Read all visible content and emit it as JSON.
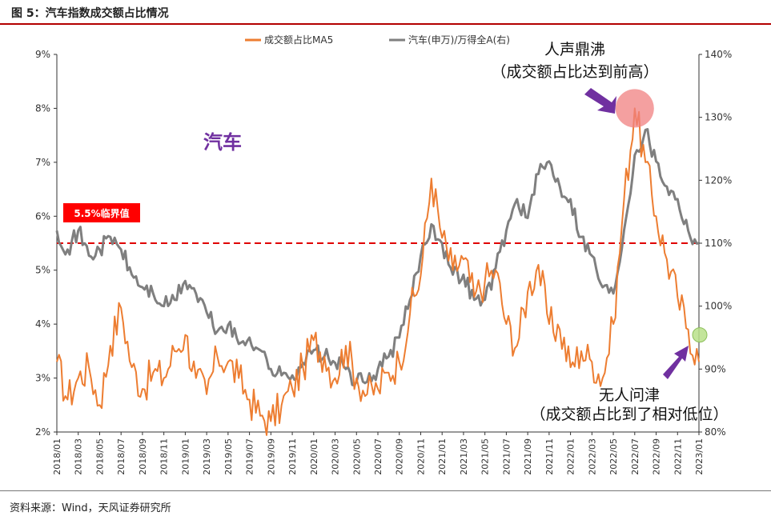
{
  "header": {
    "title": "图 5：汽车指数成交额占比情况"
  },
  "footer": {
    "source": "资料来源：Wind，天风证券研究所"
  },
  "chart_data": {
    "type": "line",
    "sector_label": "汽车",
    "legend": {
      "placement": "top-center",
      "items": [
        {
          "name": "成交额占比MA5",
          "color": "#ed7d31"
        },
        {
          "name": "汽车(申万)/万得全A(右)",
          "color": "#7f7f7f"
        }
      ]
    },
    "colors": {
      "share": "#ed7d31",
      "ratio": "#7f7f7f",
      "threshold": "#e00000",
      "label_red": "#ff0000",
      "annotation_purple": "#7030a0"
    },
    "y_left": {
      "min": 2,
      "max": 9,
      "ticks": [
        "2%",
        "3%",
        "4%",
        "5%",
        "6%",
        "7%",
        "8%",
        "9%"
      ]
    },
    "y_right": {
      "min": 80,
      "max": 140,
      "ticks": [
        "80%",
        "90%",
        "100%",
        "110%",
        "120%",
        "130%",
        "140%"
      ]
    },
    "x_ticks": [
      "2018/01",
      "2018/03",
      "2018/05",
      "2018/07",
      "2018/09",
      "2018/11",
      "2019/01",
      "2019/03",
      "2019/05",
      "2019/07",
      "2019/09",
      "2019/11",
      "2020/01",
      "2020/03",
      "2020/05",
      "2020/07",
      "2020/09",
      "2020/11",
      "2021/01",
      "2021/03",
      "2021/05",
      "2021/07",
      "2021/09",
      "2021/11",
      "2022/01",
      "2022/03",
      "2022/05",
      "2022/07",
      "2022/09",
      "2022/11",
      "2023/01"
    ],
    "threshold": {
      "value": 5.5,
      "label": "5.5%临界值"
    },
    "annotations": {
      "high": {
        "line1": "人声鼎沸",
        "line2": "（成交额占比达到前高）",
        "month": "2022/07",
        "value": 8.0
      },
      "low": {
        "line1": "无人问津",
        "line2": "（成交额占比到了相对低位）",
        "month": "2022/12",
        "value": 3.8
      }
    },
    "series": [
      {
        "name": "成交额占比MA5",
        "axis": "left",
        "x": [
          "2018/01",
          "2018/02",
          "2018/03",
          "2018/04",
          "2018/05",
          "2018/06",
          "2018/07",
          "2018/08",
          "2018/09",
          "2018/10",
          "2018/11",
          "2018/12",
          "2019/01",
          "2019/02",
          "2019/03",
          "2019/04",
          "2019/05",
          "2019/06",
          "2019/07",
          "2019/08",
          "2019/09",
          "2019/10",
          "2019/11",
          "2019/12",
          "2020/01",
          "2020/02",
          "2020/03",
          "2020/04",
          "2020/05",
          "2020/06",
          "2020/07",
          "2020/08",
          "2020/09",
          "2020/10",
          "2020/11",
          "2020/12",
          "2021/01",
          "2021/02",
          "2021/03",
          "2021/04",
          "2021/05",
          "2021/06",
          "2021/07",
          "2021/08",
          "2021/09",
          "2021/10",
          "2021/11",
          "2021/12",
          "2022/01",
          "2022/02",
          "2022/03",
          "2022/04",
          "2022/05",
          "2022/06",
          "2022/07",
          "2022/08",
          "2022/09",
          "2022/10",
          "2022/11",
          "2022/12",
          "2023/01"
        ],
        "values": [
          3.3,
          2.6,
          3.0,
          3.2,
          2.5,
          3.6,
          4.3,
          3.2,
          2.8,
          3.1,
          3.0,
          3.5,
          3.8,
          3.0,
          2.7,
          3.4,
          3.3,
          3.0,
          2.6,
          2.3,
          2.2,
          2.5,
          2.8,
          3.2,
          3.7,
          3.4,
          3.0,
          3.6,
          3.0,
          2.7,
          2.8,
          3.1,
          3.3,
          4.2,
          4.9,
          6.7,
          5.6,
          5.0,
          5.2,
          4.5,
          4.8,
          5.0,
          4.0,
          3.6,
          4.6,
          5.1,
          4.0,
          3.9,
          3.2,
          3.5,
          3.3,
          3.0,
          4.0,
          6.3,
          8.0,
          7.0,
          6.0,
          5.2,
          4.5,
          3.9,
          3.3
        ]
      },
      {
        "name": "汽车(申万)/万得全A(右)",
        "axis": "right",
        "x": [
          "2018/01",
          "2018/02",
          "2018/03",
          "2018/04",
          "2018/05",
          "2018/06",
          "2018/07",
          "2018/08",
          "2018/09",
          "2018/10",
          "2018/11",
          "2018/12",
          "2019/01",
          "2019/02",
          "2019/03",
          "2019/04",
          "2019/05",
          "2019/06",
          "2019/07",
          "2019/08",
          "2019/09",
          "2019/10",
          "2019/11",
          "2019/12",
          "2020/01",
          "2020/02",
          "2020/03",
          "2020/04",
          "2020/05",
          "2020/06",
          "2020/07",
          "2020/08",
          "2020/09",
          "2020/10",
          "2020/11",
          "2020/12",
          "2021/01",
          "2021/02",
          "2021/03",
          "2021/04",
          "2021/05",
          "2021/06",
          "2021/07",
          "2021/08",
          "2021/09",
          "2021/10",
          "2021/11",
          "2021/12",
          "2022/01",
          "2022/02",
          "2022/03",
          "2022/04",
          "2022/05",
          "2022/06",
          "2022/07",
          "2022/08",
          "2022/09",
          "2022/10",
          "2022/11",
          "2022/12",
          "2023/01"
        ],
        "values": [
          112,
          109,
          112,
          108,
          109,
          111,
          109,
          105,
          103,
          102,
          100,
          101,
          104,
          102,
          99,
          96,
          97,
          94,
          95,
          93,
          90,
          89,
          89,
          91,
          93,
          92,
          91,
          90,
          88,
          88,
          90,
          92,
          95,
          101,
          108,
          113,
          110,
          105,
          105,
          101,
          101,
          106,
          112,
          117,
          114,
          121,
          123,
          119,
          117,
          111,
          108,
          103,
          102,
          112,
          124,
          128,
          123,
          119,
          117,
          112,
          110
        ]
      }
    ]
  }
}
